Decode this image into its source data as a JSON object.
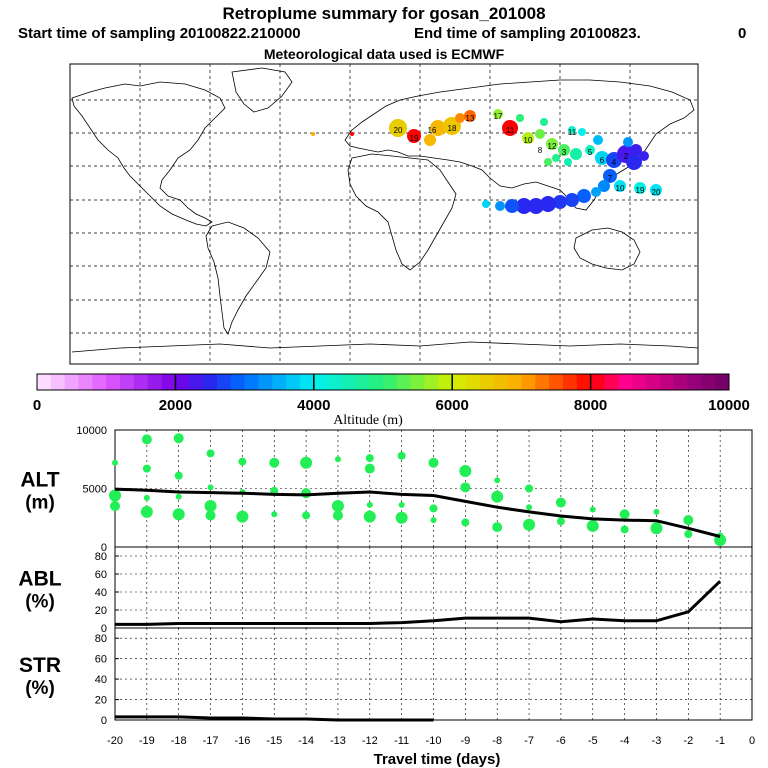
{
  "header": {
    "title": "Retroplume summary for gosan_201008",
    "start_label": "Start time of sampling 20100822.210000",
    "end_label": "End time of sampling 20100823.",
    "end_suffix": "0",
    "met_label": "Meteorological data used is ECMWF"
  },
  "colorbar": {
    "label": "Altitude (m)",
    "ticks": [
      "0",
      "2000",
      "4000",
      "6000",
      "8000",
      "10000"
    ],
    "range": [
      0,
      10000
    ]
  },
  "map_labels": [
    "20",
    "19",
    "18",
    "17",
    "16",
    "15",
    "14",
    "13",
    "12",
    "11",
    "10",
    "9",
    "8",
    "7",
    "6",
    "5",
    "4",
    "3",
    "2",
    "1"
  ],
  "colors": {
    "cluster_green": "#22ee55",
    "line": "#000000",
    "coast": "#000000"
  },
  "chart_data": [
    {
      "type": "scatter+line",
      "panel": "ALT",
      "ylabel": "ALT\n(m)",
      "ylabel_line1": "ALT",
      "ylabel_line2": "(m)",
      "ylim": [
        0,
        10000
      ],
      "yticks": [
        "0",
        "5000",
        "10000"
      ],
      "mean_line": {
        "x": [
          -20,
          -19,
          -18,
          -17,
          -16,
          -15,
          -14,
          -13,
          -12,
          -11,
          -10,
          -9,
          -8,
          -7,
          -6,
          -5,
          -4,
          -3,
          -2,
          -1
        ],
        "y": [
          4950,
          4850,
          4700,
          4650,
          4600,
          4500,
          4450,
          4600,
          4700,
          4500,
          4400,
          3900,
          3400,
          3000,
          2650,
          2400,
          2300,
          2250,
          1600,
          900
        ]
      },
      "clusters": [
        {
          "x": -20,
          "y": 7200
        },
        {
          "x": -20,
          "y": 4400
        },
        {
          "x": -20,
          "y": 3500
        },
        {
          "x": -19,
          "y": 6700
        },
        {
          "x": -19,
          "y": 4200
        },
        {
          "x": -19,
          "y": 3000
        },
        {
          "x": -19,
          "y": 9200
        },
        {
          "x": -18,
          "y": 6100
        },
        {
          "x": -18,
          "y": 4300
        },
        {
          "x": -18,
          "y": 2800
        },
        {
          "x": -18,
          "y": 9300
        },
        {
          "x": -17,
          "y": 8000
        },
        {
          "x": -17,
          "y": 5100
        },
        {
          "x": -17,
          "y": 3500
        },
        {
          "x": -17,
          "y": 2700
        },
        {
          "x": -16,
          "y": 7300
        },
        {
          "x": -16,
          "y": 4700
        },
        {
          "x": -16,
          "y": 2600
        },
        {
          "x": -15,
          "y": 7200
        },
        {
          "x": -15,
          "y": 4800
        },
        {
          "x": -15,
          "y": 2800
        },
        {
          "x": -14,
          "y": 7200
        },
        {
          "x": -14,
          "y": 4600
        },
        {
          "x": -14,
          "y": 2700
        },
        {
          "x": -13,
          "y": 7500
        },
        {
          "x": -13,
          "y": 3500
        },
        {
          "x": -13,
          "y": 2700
        },
        {
          "x": -12,
          "y": 7600
        },
        {
          "x": -12,
          "y": 3600
        },
        {
          "x": -12,
          "y": 2600
        },
        {
          "x": -12,
          "y": 6700
        },
        {
          "x": -11,
          "y": 7800
        },
        {
          "x": -11,
          "y": 3600
        },
        {
          "x": -11,
          "y": 2500
        },
        {
          "x": -10,
          "y": 7200
        },
        {
          "x": -10,
          "y": 3300
        },
        {
          "x": -10,
          "y": 2300
        },
        {
          "x": -9,
          "y": 6500
        },
        {
          "x": -9,
          "y": 5100
        },
        {
          "x": -9,
          "y": 2100
        },
        {
          "x": -8,
          "y": 5700
        },
        {
          "x": -8,
          "y": 4300
        },
        {
          "x": -8,
          "y": 1700
        },
        {
          "x": -7,
          "y": 5000
        },
        {
          "x": -7,
          "y": 3400
        },
        {
          "x": -7,
          "y": 1900
        },
        {
          "x": -6,
          "y": 3800
        },
        {
          "x": -6,
          "y": 2200
        },
        {
          "x": -5,
          "y": 3200
        },
        {
          "x": -5,
          "y": 1800
        },
        {
          "x": -4,
          "y": 2800
        },
        {
          "x": -4,
          "y": 1500
        },
        {
          "x": -3,
          "y": 3000
        },
        {
          "x": -3,
          "y": 1600
        },
        {
          "x": -2,
          "y": 2300
        },
        {
          "x": -2,
          "y": 1100
        },
        {
          "x": -1,
          "y": 1000
        },
        {
          "x": -1,
          "y": 600
        }
      ]
    },
    {
      "type": "line",
      "panel": "ABL",
      "ylabel_line1": "ABL",
      "ylabel_line2": "(%)",
      "ylim": [
        0,
        90
      ],
      "yticks": [
        "0",
        "20",
        "40",
        "60",
        "80"
      ],
      "x": [
        -20,
        -19,
        -18,
        -17,
        -16,
        -15,
        -14,
        -13,
        -12,
        -11,
        -10,
        -9,
        -8,
        -7,
        -6,
        -5,
        -4,
        -3,
        -2,
        -1
      ],
      "y": [
        4,
        4,
        5,
        5,
        5,
        5,
        5,
        5,
        5,
        6,
        8,
        11,
        11,
        11,
        7,
        10,
        8,
        8,
        18,
        52
      ]
    },
    {
      "type": "line",
      "panel": "STR",
      "ylabel_line1": "STR",
      "ylabel_line2": "(%)",
      "ylim": [
        0,
        90
      ],
      "yticks": [
        "0",
        "20",
        "40",
        "60",
        "80"
      ],
      "x": [
        -20,
        -19,
        -18,
        -17,
        -16,
        -15,
        -14,
        -13,
        -12,
        -11,
        -10
      ],
      "y": [
        3,
        3,
        3,
        2,
        2,
        1,
        1,
        0,
        0,
        0,
        0
      ]
    }
  ],
  "x_axis": {
    "label": "Travel time (days)",
    "xlim": [
      -20,
      0
    ],
    "ticks": [
      "-20",
      "-19",
      "-18",
      "-17",
      "-16",
      "-15",
      "-14",
      "-13",
      "-12",
      "-11",
      "-10",
      "-9",
      "-8",
      "-7",
      "-6",
      "-5",
      "-4",
      "-3",
      "-2",
      "-1",
      "0"
    ]
  }
}
